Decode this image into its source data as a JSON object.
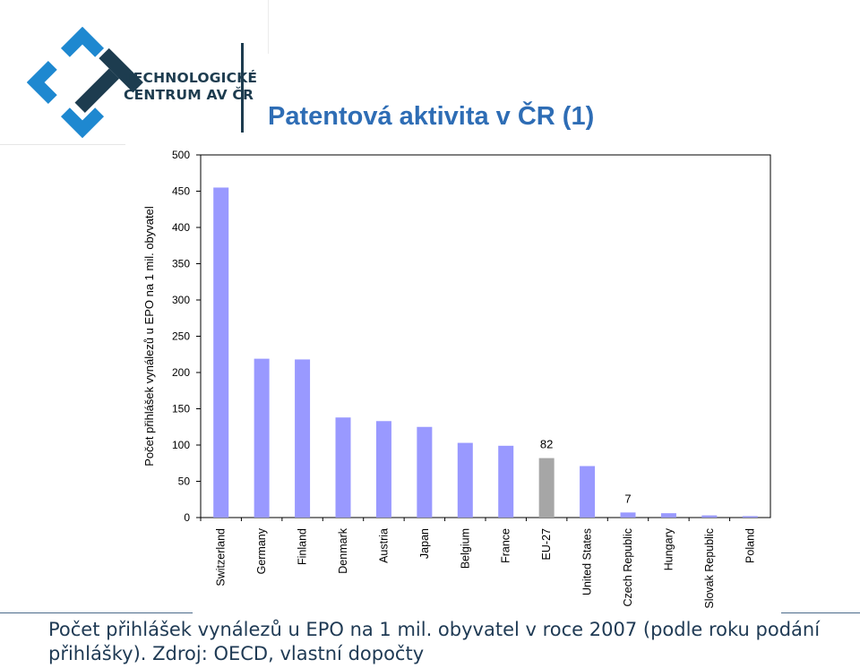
{
  "header": {
    "logo_line1": "TECHNOLOGICKÉ",
    "logo_line2": "CENTRUM AV ČR",
    "title": "Patentová aktivita v ČR (1)"
  },
  "caption": "Počet přihlášek vynálezů u EPO na 1 mil. obyvatel v roce 2007 (podle roku podání přihlášky). Zdroj: OECD, vlastní dopočty",
  "colors": {
    "bar": "#9999ff",
    "highlight": "#a6a6a6",
    "title": "#2e6db5",
    "logo_dark": "#1d3c4f",
    "logo_blue": "#1e88d0"
  },
  "chart_data": {
    "type": "bar",
    "title": "",
    "xlabel": "",
    "ylabel": "Počet přihlášek vynálezů u EPO na 1 mil. obyvatel",
    "ylim": [
      0,
      500
    ],
    "yticks": [
      0,
      50,
      100,
      150,
      200,
      250,
      300,
      350,
      400,
      450,
      500
    ],
    "grid": false,
    "categories": [
      "Switzerland",
      "Germany",
      "Finland",
      "Denmark",
      "Austria",
      "Japan",
      "Belgium",
      "France",
      "EU-27",
      "United States",
      "Czech Republic",
      "Hungary",
      "Slovak Republic",
      "Poland"
    ],
    "values": [
      455,
      219,
      218,
      138,
      133,
      125,
      103,
      99,
      82,
      71,
      7,
      6,
      3,
      2
    ],
    "highlight": "EU-27",
    "data_labels": [
      {
        "category": "EU-27",
        "text": "82"
      },
      {
        "category": "Czech Republic",
        "text": "7"
      }
    ]
  }
}
